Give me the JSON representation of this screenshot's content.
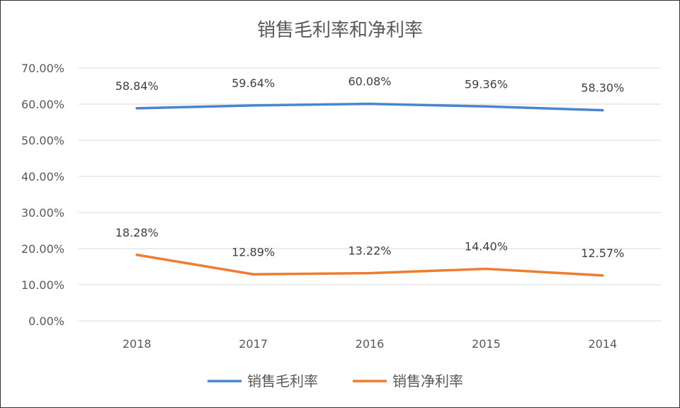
{
  "chart_data": {
    "type": "line",
    "title": "销售毛利率和净利率",
    "categories": [
      "2018",
      "2017",
      "2016",
      "2015",
      "2014"
    ],
    "series": [
      {
        "name": "销售毛利率",
        "color": "#4a86d0",
        "values": [
          58.84,
          59.64,
          60.08,
          59.36,
          58.3
        ],
        "labels": [
          "58.84%",
          "59.64%",
          "60.08%",
          "59.36%",
          "58.30%"
        ]
      },
      {
        "name": "销售净利率",
        "color": "#ed7d31",
        "values": [
          18.28,
          12.89,
          13.22,
          14.4,
          12.57
        ],
        "labels": [
          "18.28%",
          "12.89%",
          "13.22%",
          "14.40%",
          "12.57%"
        ]
      }
    ],
    "yticks": [
      "0.00%",
      "10.00%",
      "20.00%",
      "30.00%",
      "40.00%",
      "50.00%",
      "60.00%",
      "70.00%"
    ],
    "ylim": [
      0,
      70
    ],
    "grid": true,
    "legend_position": "bottom",
    "xlabel": "",
    "ylabel": ""
  }
}
